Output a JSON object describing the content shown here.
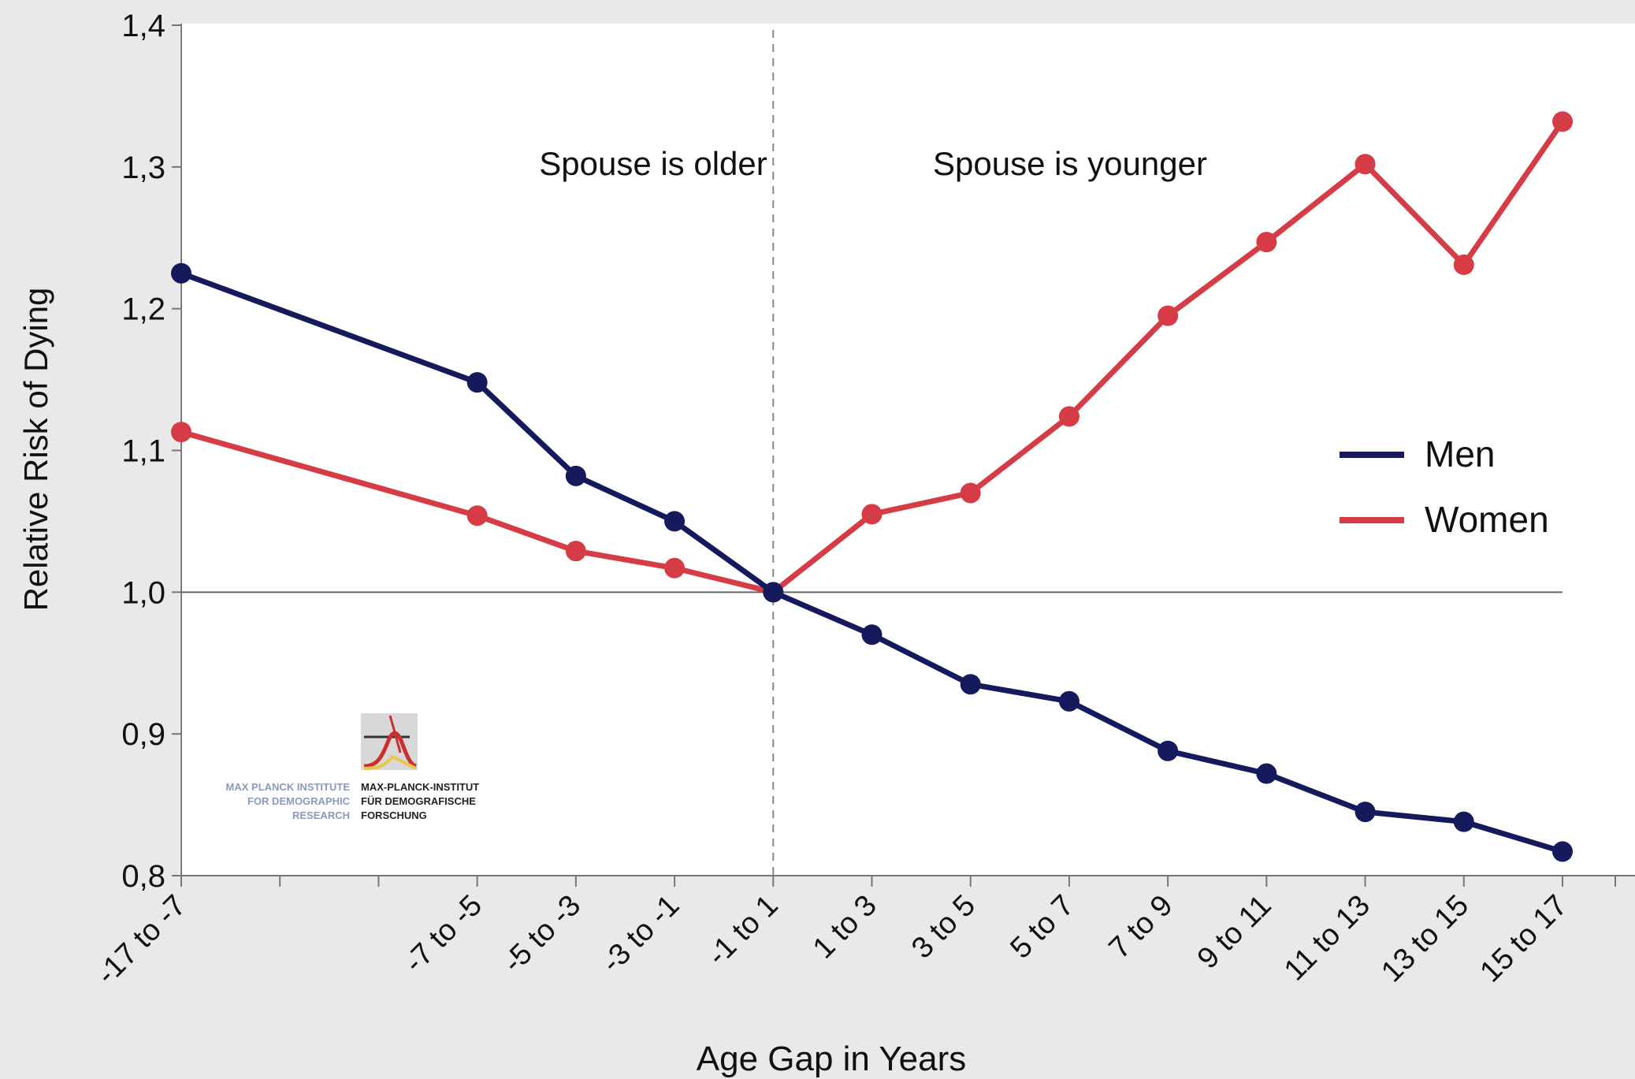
{
  "chart_data": {
    "type": "line",
    "title": "",
    "xlabel": "Age Gap in Years",
    "ylabel": "Relative Risk of Dying",
    "ylim": [
      0.8,
      1.4
    ],
    "yticks": [
      "0,8",
      "0,9",
      "1,0",
      "1,1",
      "1,2",
      "1,3",
      "1,4"
    ],
    "x_positions": [
      -12,
      -6,
      -4,
      -2,
      0,
      2,
      4,
      6,
      8,
      10,
      12,
      14,
      16
    ],
    "categories": [
      "-17 to -7",
      "-7 to -5",
      "-5 to -3",
      "-3 to -1",
      "-1 to 1",
      "1 to 3",
      "3 to 5",
      "5 to 7",
      "7 to 9",
      "9 to 11",
      "11 to 13",
      "13 to 15",
      "15 to 17"
    ],
    "series": [
      {
        "name": "Men",
        "color": "#141a5c",
        "values": [
          1.225,
          1.148,
          1.082,
          1.05,
          1.0,
          0.97,
          0.935,
          0.923,
          0.888,
          0.872,
          0.845,
          0.838,
          0.817
        ]
      },
      {
        "name": "Women",
        "color": "#d63c45",
        "values": [
          1.113,
          1.054,
          1.029,
          1.017,
          1.0,
          1.055,
          1.07,
          1.124,
          1.195,
          1.247,
          1.302,
          1.231,
          1.332
        ]
      }
    ],
    "annotations": {
      "left_region": "Spouse is older",
      "right_region": "Spouse is younger"
    },
    "reference_line_y": 1.0,
    "divider_x": 0,
    "legend_position": "right",
    "grid": false
  },
  "logo": {
    "en_lines": [
      "MAX PLANCK INSTITUTE",
      "FOR DEMOGRAPHIC",
      "RESEARCH"
    ],
    "de_lines": [
      "MAX-PLANCK-INSTITUT",
      "FÜR DEMOGRAFISCHE",
      "FORSCHUNG"
    ]
  }
}
